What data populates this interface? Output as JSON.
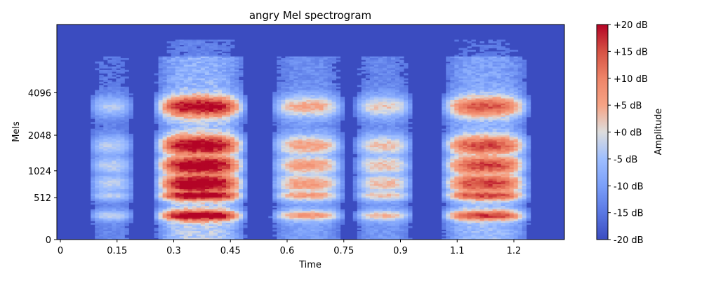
{
  "chart_data": {
    "type": "heatmap",
    "title": "angry Mel spectrogram",
    "xlabel": "Time",
    "ylabel": "Mels",
    "x_ticks": [
      "0",
      "0.15",
      "0.3",
      "0.45",
      "0.6",
      "0.75",
      "0.9",
      "1.1",
      "1.2"
    ],
    "y_ticks": [
      "0",
      "512",
      "1024",
      "2048",
      "4096"
    ],
    "xlim": [
      0,
      1.66
    ],
    "y_scale": "mel",
    "colorbar": {
      "label": "Amplitude",
      "ticks": [
        "+20 dB",
        "+15 dB",
        "+10 dB",
        "+5 dB",
        "+0 dB",
        "-5 dB",
        "-10 dB",
        "-15 dB",
        "-20 dB"
      ],
      "range_db": [
        -20,
        20
      ],
      "colormap": "coolwarm",
      "low_color": "#3b4cc0",
      "mid_color": "#dddddd",
      "high_color": "#b40426"
    },
    "grid": false,
    "segments": [
      {
        "t_start": 0.07,
        "t_end": 0.2,
        "peak_db": -4
      },
      {
        "t_start": 0.24,
        "t_end": 0.5,
        "peak_db": 20
      },
      {
        "t_start": 0.55,
        "t_end": 0.76,
        "peak_db": 4
      },
      {
        "t_start": 0.77,
        "t_end": 0.94,
        "peak_db": 1
      },
      {
        "t_start": 1.0,
        "t_end": 1.25,
        "peak_db": 13
      }
    ],
    "formant_bands_hz": [
      260,
      550,
      760,
      1150,
      1700,
      3300
    ]
  }
}
